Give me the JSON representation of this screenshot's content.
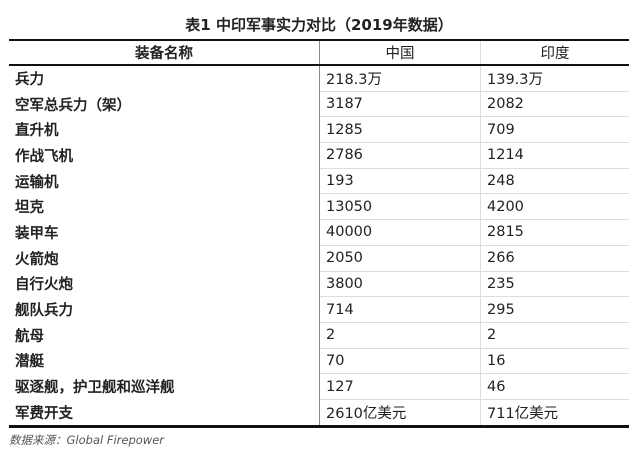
{
  "title": "表1 中印军事实力对比（2019年数据）",
  "headers": [
    "装备名称",
    "中国",
    "印度"
  ],
  "rows": [
    [
      "兵力",
      "218.3万",
      "139.3万"
    ],
    [
      "空军总兵力（架）",
      "3187",
      "2082"
    ],
    [
      "直升机",
      "1285",
      "709"
    ],
    [
      "作战飞机",
      "2786",
      "1214"
    ],
    [
      "运输机",
      "193",
      "248"
    ],
    [
      "坦克",
      "13050",
      "4200"
    ],
    [
      "装甲车",
      "40000",
      "2815"
    ],
    [
      "火箭炮",
      "2050",
      "266"
    ],
    [
      "自行火炮",
      "3800",
      "235"
    ],
    [
      "舰队兵力",
      "714",
      "295"
    ],
    [
      "航母",
      "2",
      "2"
    ],
    [
      "潜艇",
      "70",
      "16"
    ],
    [
      "驱逐舰，护卫舰和巡洋舰",
      "127",
      "46"
    ],
    [
      "军费开支",
      "2610亿美元",
      "711亿美元"
    ]
  ],
  "source": "数据来源：Global Firepower"
}
